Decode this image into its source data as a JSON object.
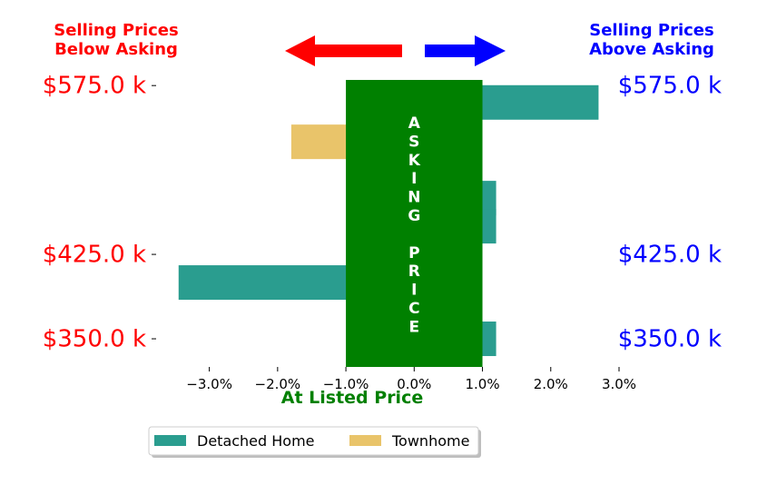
{
  "chart_data": {
    "type": "bar",
    "orientation": "horizontal",
    "header_left": [
      "Selling Prices",
      "Below Asking"
    ],
    "header_right": [
      "Selling Prices",
      "Above Asking"
    ],
    "center_band_label": [
      "A",
      "S",
      "K",
      "I",
      "N",
      "G",
      "",
      "P",
      "R",
      "I",
      "C",
      "E"
    ],
    "xlabel": "At Listed Price",
    "xlim": [
      -3.5,
      3.0
    ],
    "xticks": [
      -3.0,
      -2.0,
      -1.0,
      0.0,
      1.0,
      2.0,
      3.0
    ],
    "xtick_labels": [
      "−3.0%",
      "−2.0%",
      "−1.0%",
      "0.0%",
      "1.0%",
      "2.0%",
      "3.0%"
    ],
    "ylim": [
      325,
      580
    ],
    "yticks": [
      350,
      425,
      575
    ],
    "ytick_labels": [
      "$350.0 k",
      "$425.0 k",
      "$575.0 k"
    ],
    "band": {
      "from": -1.0,
      "to": 1.0
    },
    "series": [
      {
        "name": "Detached Home",
        "color": "#2a9d8f",
        "points": [
          {
            "y": 560,
            "x": 2.7
          },
          {
            "y": 475,
            "x": 1.2
          },
          {
            "y": 450,
            "x": 1.2
          },
          {
            "y": 400,
            "x": -3.45
          },
          {
            "y": 350,
            "x": 1.2
          }
        ]
      },
      {
        "name": "Townhome",
        "color": "#e9c46a",
        "points": [
          {
            "y": 525,
            "x": -1.8
          }
        ]
      }
    ],
    "legend_placement": "bottom-center",
    "colors": {
      "left": "#ff0000",
      "right": "#0000ff",
      "center": "#008000"
    },
    "grid": false
  }
}
